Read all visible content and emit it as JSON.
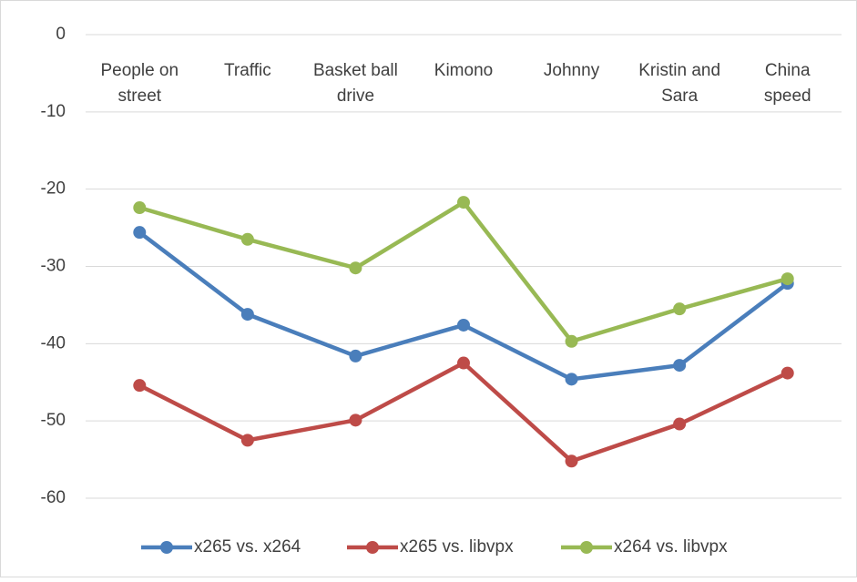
{
  "chart_data": {
    "type": "line",
    "categories": [
      "People on\nstreet",
      "Traffic",
      "Basket ball\ndrive",
      "Kimono",
      "Johnny",
      "Kristin and\nSara",
      "China\nspeed"
    ],
    "series": [
      {
        "name": "x265 vs. x264",
        "color": "#4a7ebb",
        "values": [
          -25.6,
          -36.2,
          -41.6,
          -37.6,
          -44.6,
          -42.8,
          -32.2
        ]
      },
      {
        "name": "x265 vs. libvpx",
        "color": "#be4b48",
        "values": [
          -45.4,
          -52.5,
          -49.9,
          -42.5,
          -55.2,
          -50.4,
          -43.8
        ]
      },
      {
        "name": "x264 vs. libvpx",
        "color": "#98b954",
        "values": [
          -22.4,
          -26.5,
          -30.2,
          -21.7,
          -39.7,
          -35.5,
          -31.6
        ]
      }
    ],
    "ylim": [
      -60,
      0
    ],
    "yticks": [
      -60,
      -50,
      -40,
      -30,
      -20,
      -10,
      0
    ],
    "grid": true,
    "legend": "bottom"
  }
}
